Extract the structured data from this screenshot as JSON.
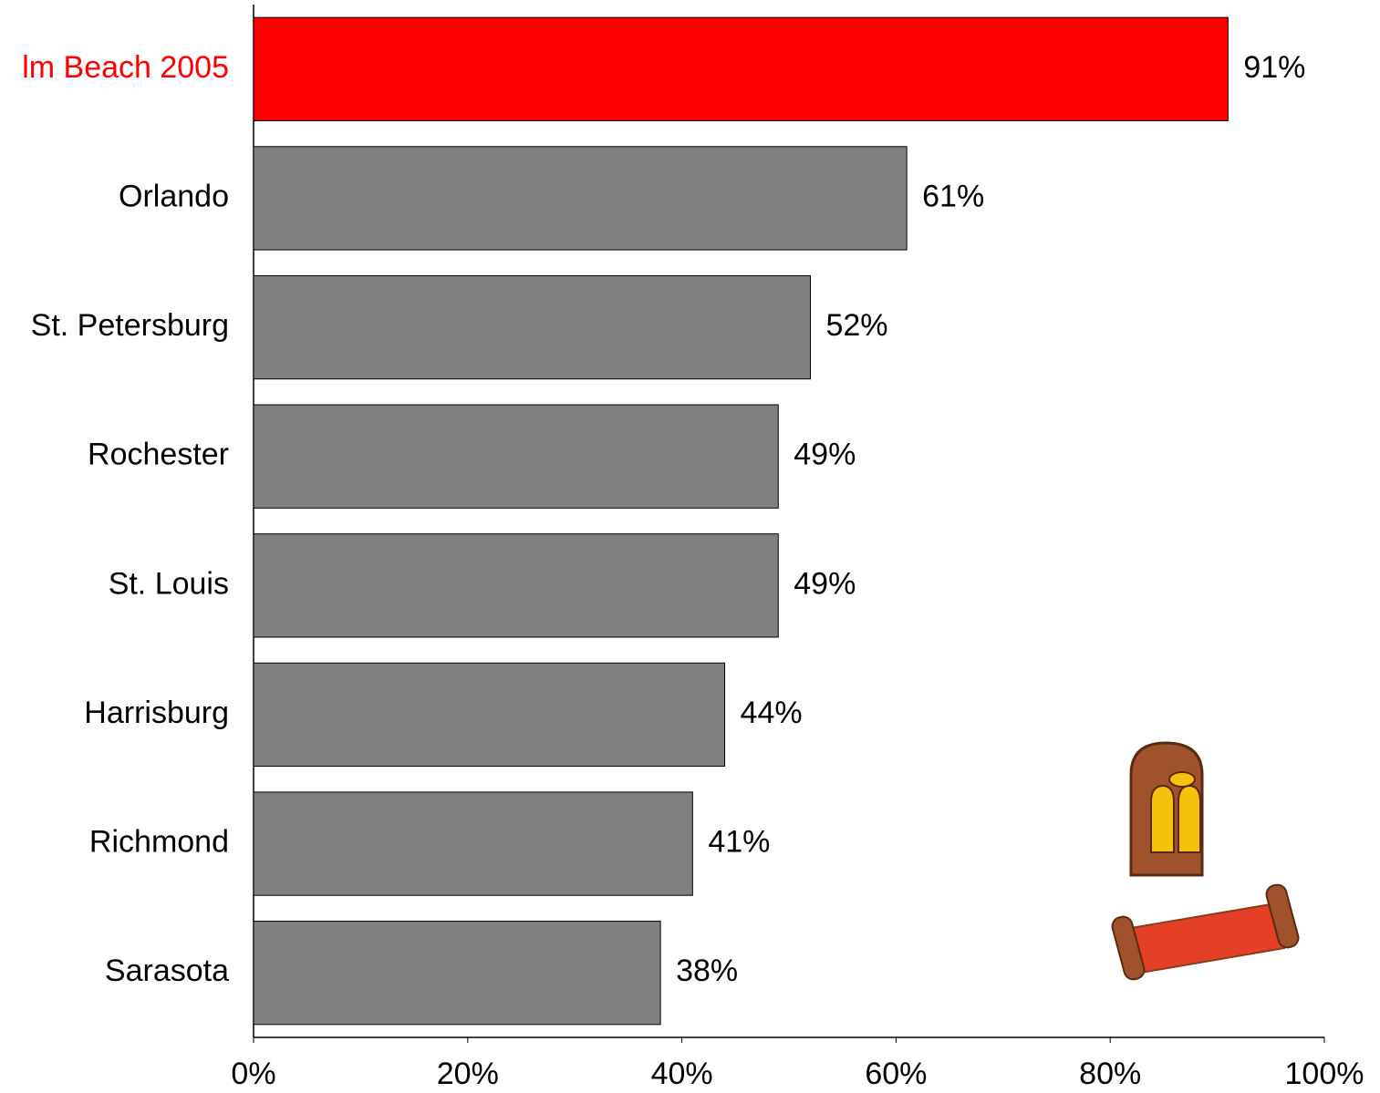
{
  "chart_data": {
    "type": "hbar",
    "categories": [
      "lm Beach 2005",
      "Orlando",
      "St. Petersburg",
      "Rochester",
      "St. Louis",
      "Harrisburg",
      "Richmond",
      "Sarasota"
    ],
    "values": [
      91,
      61,
      52,
      49,
      49,
      44,
      41,
      38
    ],
    "value_labels": [
      "91%",
      "61%",
      "52%",
      "49%",
      "49%",
      "44%",
      "41%",
      "38%"
    ],
    "colors": [
      "#ff0000",
      "#808080",
      "#808080",
      "#808080",
      "#808080",
      "#808080",
      "#808080",
      "#808080"
    ],
    "label_colors": [
      "#ff0000",
      "#000000",
      "#000000",
      "#000000",
      "#000000",
      "#000000",
      "#000000",
      "#000000"
    ],
    "xlim": [
      0,
      100
    ],
    "xticks": [
      {
        "value": 0,
        "label": "0%"
      },
      {
        "value": 20,
        "label": "20%"
      },
      {
        "value": 40,
        "label": "40%"
      },
      {
        "value": 60,
        "label": "60%"
      },
      {
        "value": 80,
        "label": "80%"
      },
      {
        "value": 100,
        "label": "100%"
      }
    ],
    "grid": false
  }
}
